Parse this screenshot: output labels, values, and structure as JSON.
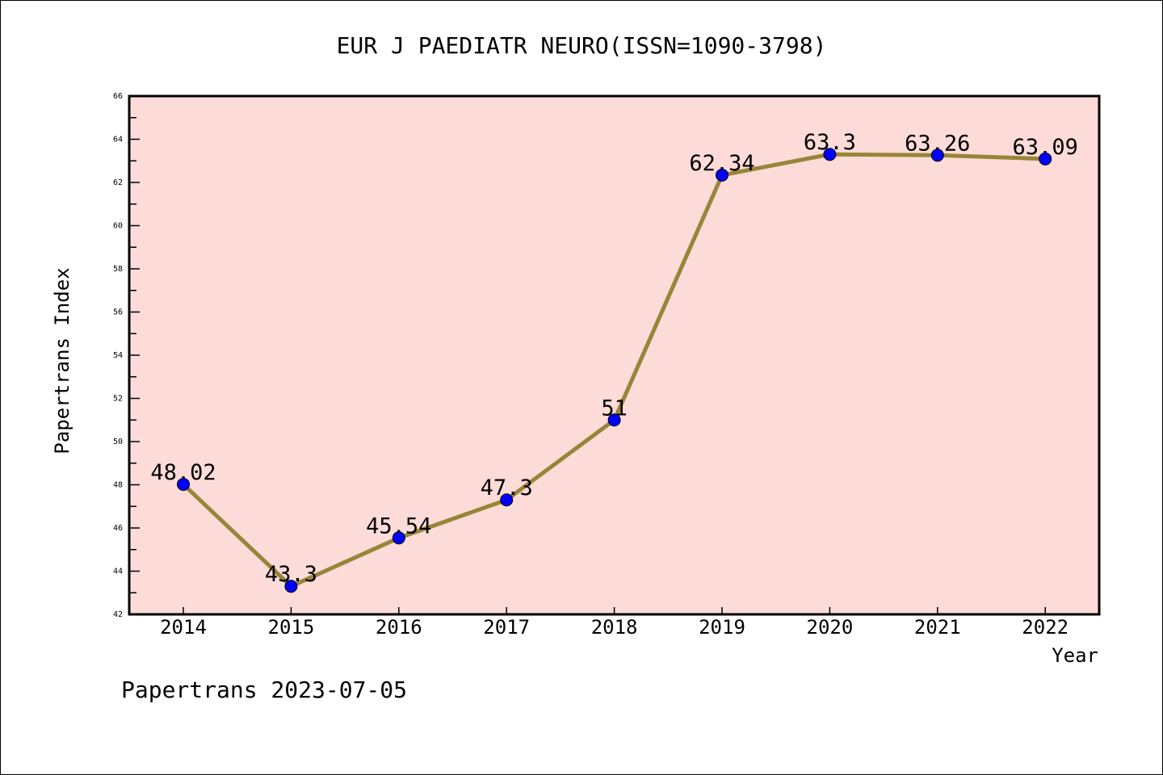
{
  "chart_data": {
    "type": "line",
    "title": "EUR J PAEDIATR NEURO(ISSN=1090-3798)",
    "xlabel": "Year",
    "ylabel": "Papertrans Index",
    "footer": "Papertrans 2023-07-05",
    "categories": [
      "2014",
      "2015",
      "2016",
      "2017",
      "2018",
      "2019",
      "2020",
      "2021",
      "2022"
    ],
    "values": [
      48.02,
      43.3,
      45.54,
      47.3,
      51,
      62.34,
      63.3,
      63.26,
      63.09
    ],
    "data_labels": [
      "48.02",
      "43.3",
      "45.54",
      "47.3",
      "51",
      "62.34",
      "63.3",
      "63.26",
      "63.09"
    ],
    "ylim": [
      42,
      66
    ],
    "yticks": [
      42,
      44,
      46,
      48,
      50,
      52,
      54,
      56,
      58,
      60,
      62,
      64,
      66
    ],
    "grid": false,
    "colors": {
      "background": "#fddbd8",
      "line": "#998438",
      "marker": "#0000ff"
    }
  }
}
